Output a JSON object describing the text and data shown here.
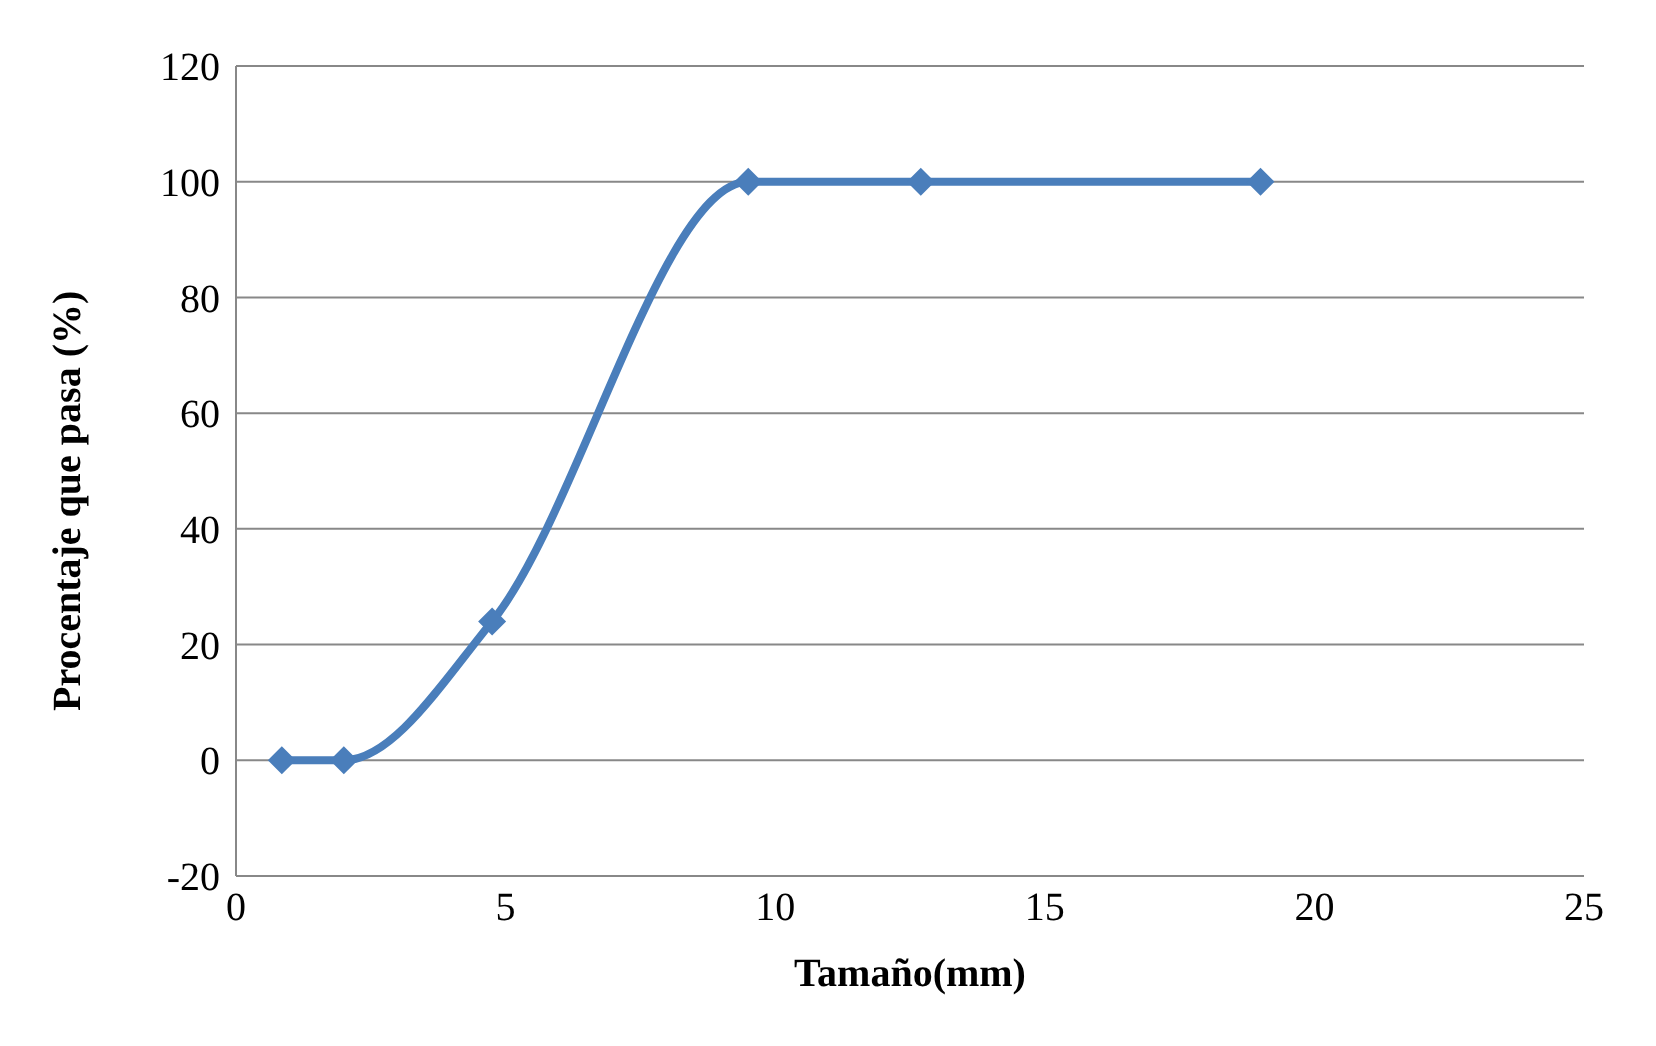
{
  "chart_data": {
    "type": "line",
    "xlabel": "Tamaño(mm)",
    "ylabel": "Procentaje que pasa (%)",
    "x": [
      0.85,
      2.0,
      4.75,
      9.5,
      12.7,
      19.0
    ],
    "series": [
      {
        "color": "#4a7ebb",
        "values": [
          0,
          0,
          24,
          100,
          100,
          100
        ]
      }
    ],
    "xlim": [
      0,
      25
    ],
    "xticks": [
      0,
      5,
      10,
      15,
      20,
      25
    ],
    "ylim": [
      -20,
      120
    ],
    "yticks": [
      -20,
      0,
      20,
      40,
      60,
      80,
      100,
      120
    ],
    "grid": "y",
    "marker": "diamond",
    "line_style": "solid"
  }
}
